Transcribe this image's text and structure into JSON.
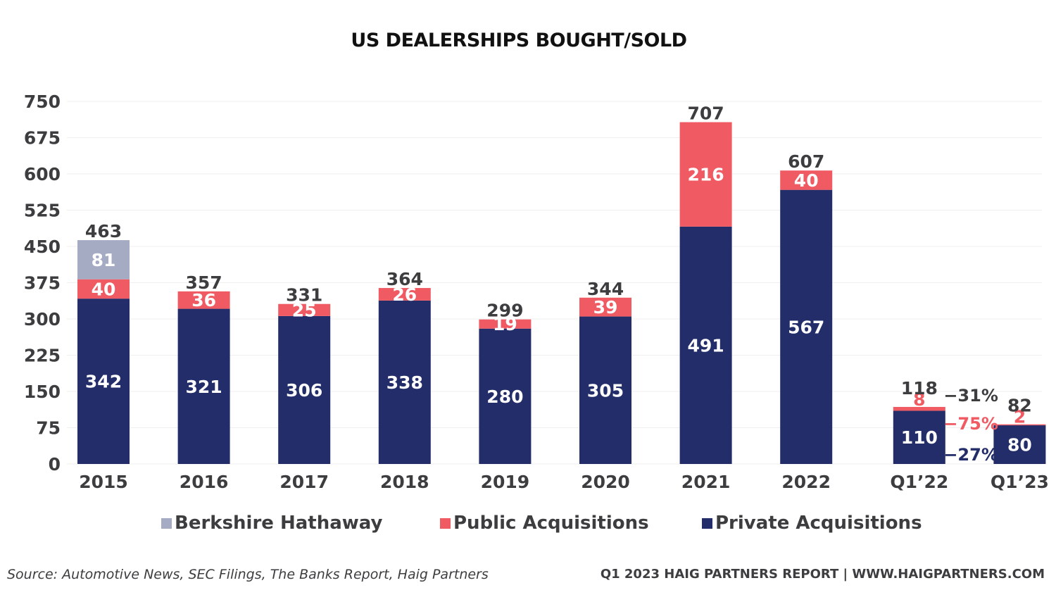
{
  "chart_data": {
    "type": "bar",
    "stacked": true,
    "title": "US DEALERSHIPS BOUGHT/SOLD",
    "xlabel": "",
    "ylabel": "",
    "ylim": [
      0,
      750
    ],
    "yticks": [
      0,
      75,
      150,
      225,
      300,
      375,
      450,
      525,
      600,
      675,
      750
    ],
    "grid": true,
    "categories": [
      "2015",
      "2016",
      "2017",
      "2018",
      "2019",
      "2020",
      "2021",
      "2022",
      "Q1’22",
      "Q1’23"
    ],
    "series": [
      {
        "name": "Private Acquisitions",
        "color": "#232d69",
        "values": [
          342,
          321,
          306,
          338,
          280,
          305,
          491,
          567,
          110,
          80
        ]
      },
      {
        "name": "Public Acquisitions",
        "color": "#f05a62",
        "values": [
          40,
          36,
          25,
          26,
          19,
          39,
          216,
          40,
          8,
          2
        ]
      },
      {
        "name": "Berkshire Hathaway",
        "color": "#a5abc3",
        "values": [
          81,
          0,
          0,
          0,
          0,
          0,
          0,
          0,
          0,
          0
        ]
      }
    ],
    "totals": [
      463,
      357,
      331,
      364,
      299,
      344,
      707,
      607,
      118,
      82
    ],
    "legend": {
      "position": "bottom",
      "order": [
        "Berkshire Hathaway",
        "Public Acquisitions",
        "Private Acquisitions"
      ]
    },
    "annotations": [
      {
        "text": "-31%",
        "refers_to": "total",
        "color": "#3d3d3f"
      },
      {
        "text": "-75%",
        "refers_to": "Public Acquisitions",
        "color": "#f05a62"
      },
      {
        "text": "-27%",
        "refers_to": "Private Acquisitions",
        "color": "#232d69"
      }
    ]
  },
  "footer": {
    "source": "Source: Automotive News, SEC Filings, The Banks Report, Haig Partners",
    "report": "Q1 2023 HAIG PARTNERS REPORT | WWW.HAIGPARTNERS.COM"
  }
}
